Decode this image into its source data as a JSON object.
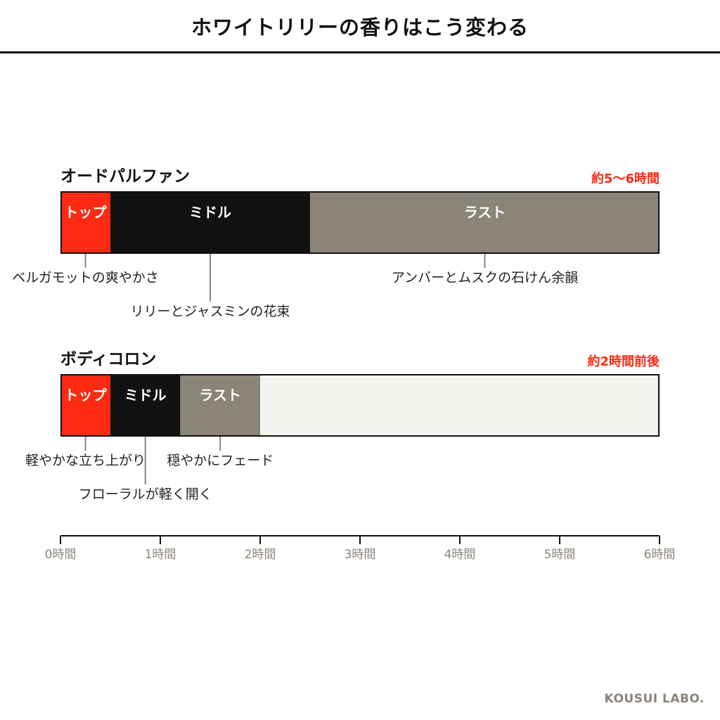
{
  "header": {
    "title": "ホワイトリリーの香りはこう変わる"
  },
  "footer": {
    "brand": "KOUSUI LABO."
  },
  "colors": {
    "top": "#ff2a12",
    "middle": "#111111",
    "last": "#8b8579",
    "empty": "#f3f3ef",
    "accent": "#ff2a12",
    "axis": "#111111",
    "tick_label": "#8b8579"
  },
  "chart_data": {
    "type": "bar",
    "orientation": "horizontal-timeline",
    "x_unit": "時間",
    "xlim": [
      0,
      6
    ],
    "x_ticks": [
      0,
      1,
      2,
      3,
      4,
      5,
      6
    ],
    "x_tick_labels": [
      "0時間",
      "1時間",
      "2時間",
      "3時間",
      "4時間",
      "5時間",
      "6時間"
    ],
    "rows": [
      {
        "name": "オードパルファン",
        "duration_label": "約5〜6時間",
        "segments": [
          {
            "label": "トップ",
            "start": 0,
            "end": 0.5,
            "color": "#ff2a12"
          },
          {
            "label": "ミドル",
            "start": 0.5,
            "end": 2.5,
            "color": "#111111"
          },
          {
            "label": "ラスト",
            "start": 2.5,
            "end": 6,
            "color": "#8b8579"
          }
        ],
        "annotations": [
          {
            "text": "ベルガモットの爽やかさ",
            "x": 0.25,
            "level": 1
          },
          {
            "text": "リリーとジャスミンの花束",
            "x": 1.5,
            "level": 2
          },
          {
            "text": "アンバーとムスクの石けん余韻",
            "x": 4.25,
            "level": 1
          }
        ]
      },
      {
        "name": "ボディコロン",
        "duration_label": "約2時間前後",
        "segments": [
          {
            "label": "トップ",
            "start": 0,
            "end": 0.5,
            "color": "#ff2a12"
          },
          {
            "label": "ミドル",
            "start": 0.5,
            "end": 1.2,
            "color": "#111111"
          },
          {
            "label": "ラスト",
            "start": 1.2,
            "end": 2,
            "color": "#8b8579"
          }
        ],
        "annotations": [
          {
            "text": "軽やかな立ち上がり",
            "x": 0.25,
            "level": 1
          },
          {
            "text": "フローラルが軽く開く",
            "x": 0.85,
            "level": 2
          },
          {
            "text": "穏やかにフェード",
            "x": 1.6,
            "level": 1
          }
        ]
      }
    ]
  }
}
